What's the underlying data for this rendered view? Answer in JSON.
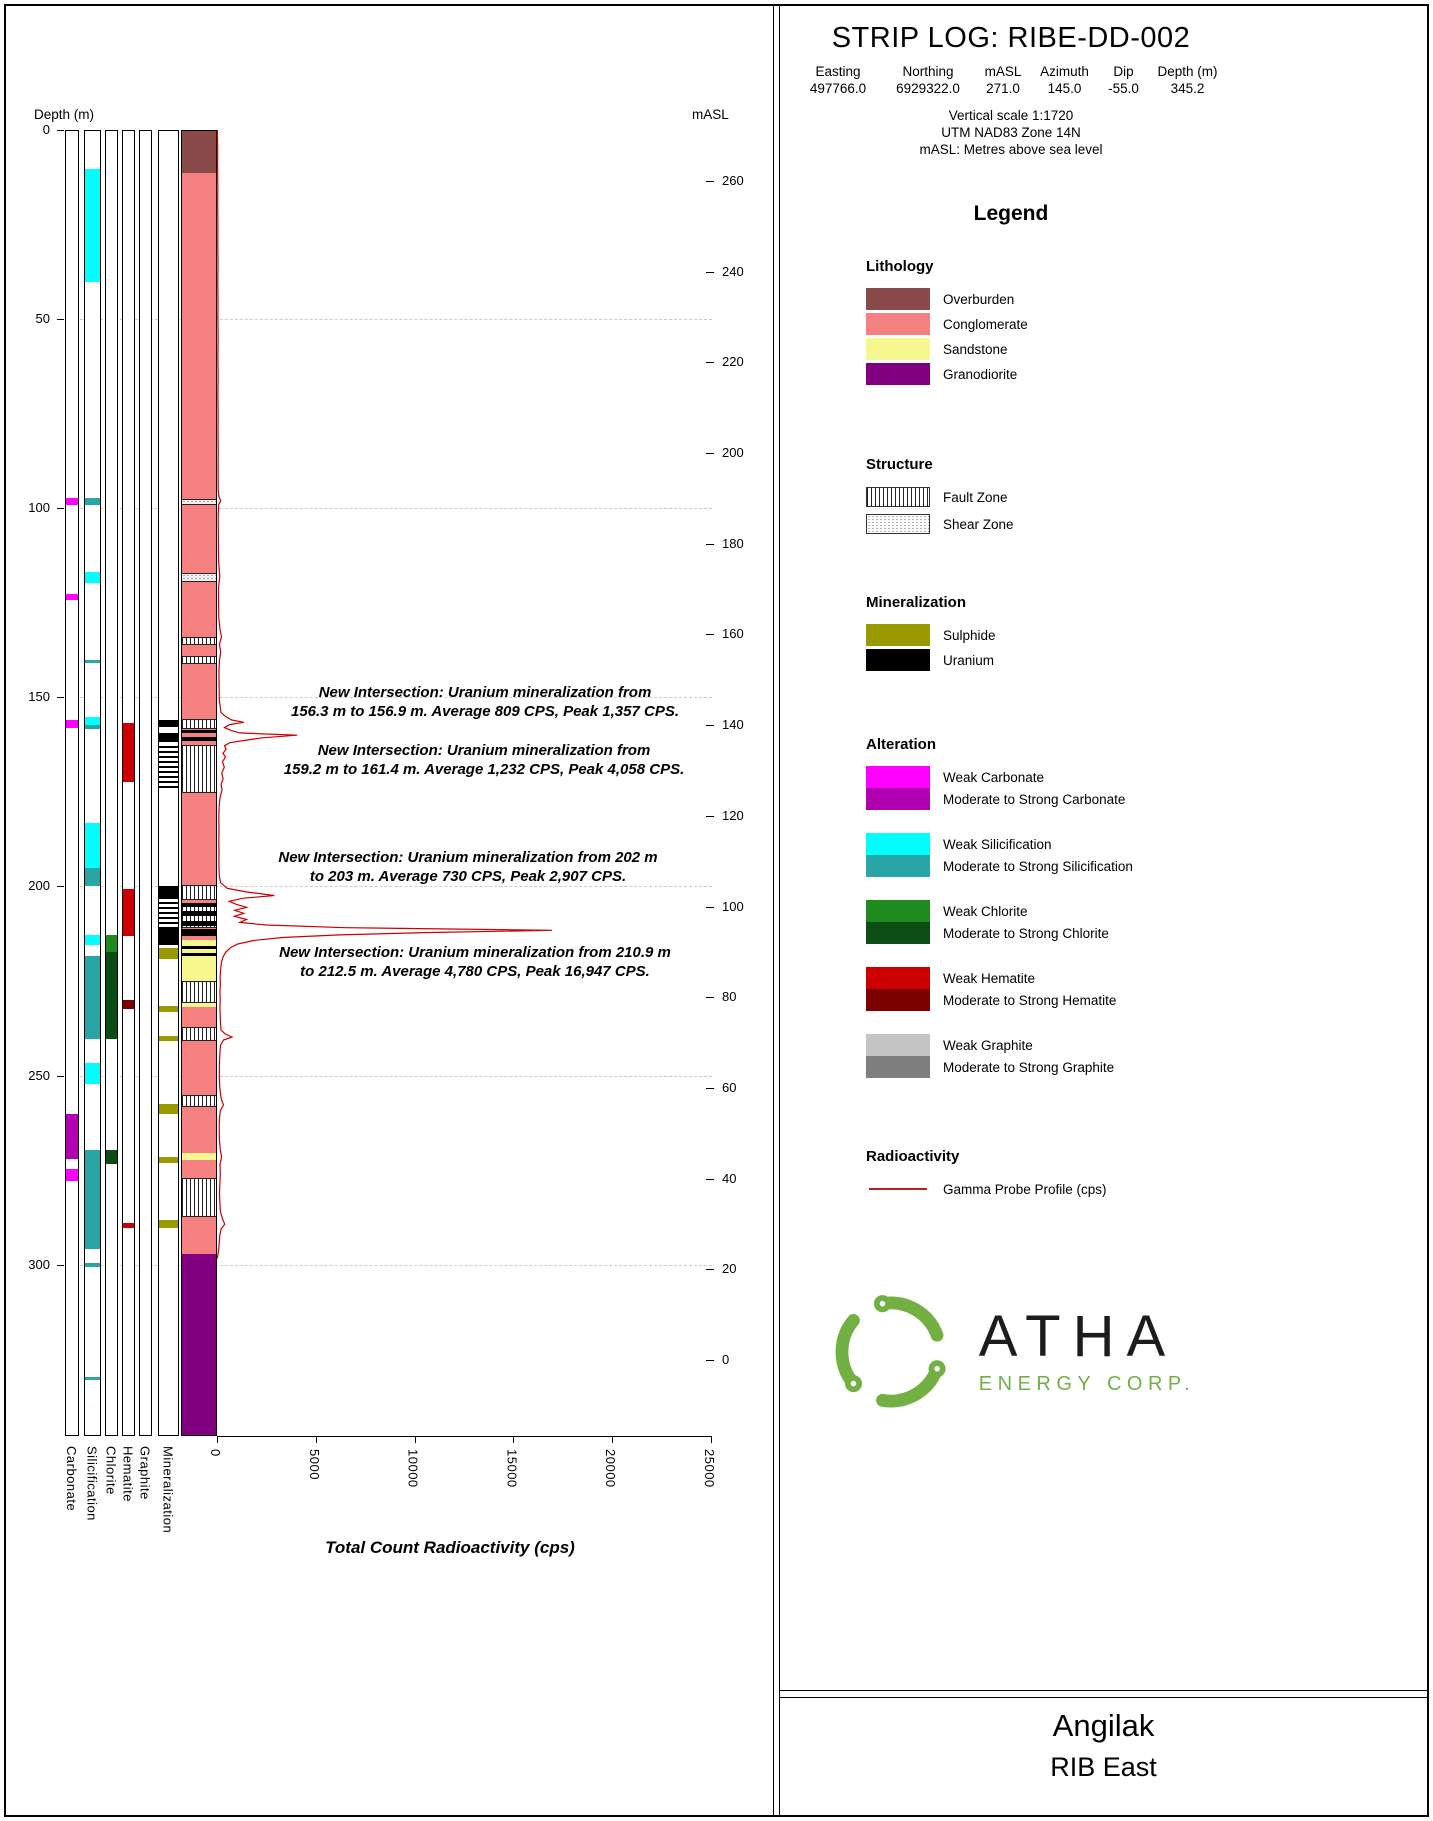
{
  "header": {
    "title": "STRIP LOG: RIBE-DD-002",
    "meta_headers": [
      "Easting",
      "Northing",
      "mASL",
      "Azimuth",
      "Dip",
      "Depth (m)"
    ],
    "meta_values": [
      "497766.0",
      "6929322.0",
      "271.0",
      "145.0",
      "-55.0",
      "345.2"
    ],
    "notes": [
      "Vertical scale 1:1720",
      "UTM NAD83 Zone 14N",
      "mASL: Metres above sea level"
    ]
  },
  "legend": {
    "title": "Legend",
    "sections": [
      {
        "heading": "Lithology",
        "type": "swatch",
        "items": [
          {
            "label": "Overburden",
            "color": "#8B4A4A"
          },
          {
            "label": "Conglomerate",
            "color": "#F58080"
          },
          {
            "label": "Sandstone",
            "color": "#F7F78F"
          },
          {
            "label": "Granodiorite",
            "color": "#800080"
          }
        ]
      },
      {
        "heading": "Structure",
        "type": "pattern",
        "items": [
          {
            "label": "Fault Zone",
            "pattern": "fault"
          },
          {
            "label": "Shear Zone",
            "pattern": "shear"
          }
        ]
      },
      {
        "heading": "Mineralization",
        "type": "swatch",
        "items": [
          {
            "label": "Sulphide",
            "color": "#999900"
          },
          {
            "label": "Uranium",
            "color": "#000000"
          }
        ]
      },
      {
        "heading": "Alteration",
        "type": "pairs",
        "items": [
          {
            "weak_label": "Weak Carbonate",
            "strong_label": "Moderate to Strong Carbonate",
            "weak_color": "#FF00FF",
            "strong_color": "#B000B0"
          },
          {
            "weak_label": "Weak Silicification",
            "strong_label": "Moderate to Strong Silicification",
            "weak_color": "#00FFFF",
            "strong_color": "#2AA5A5"
          },
          {
            "weak_label": "Weak Chlorite",
            "strong_label": "Moderate to Strong Chlorite",
            "weak_color": "#1F8B1F",
            "strong_color": "#0B4D14"
          },
          {
            "weak_label": "Weak Hematite",
            "strong_label": "Moderate to Strong Hematite",
            "weak_color": "#CC0000",
            "strong_color": "#7B0000"
          },
          {
            "weak_label": "Weak Graphite",
            "strong_label": "Moderate to Strong Graphite",
            "weak_color": "#C4C4C4",
            "strong_color": "#7F7F7F"
          }
        ]
      },
      {
        "heading": "Radioactivity",
        "type": "line",
        "items": [
          {
            "label": "Gamma Probe Profile (cps)",
            "color": "#B22222"
          }
        ]
      }
    ]
  },
  "logo": {
    "name": "ATHA",
    "subtitle": "ENERGY CORP."
  },
  "footer": {
    "project": "Angilak",
    "area": "RIB East"
  },
  "annotations": [
    {
      "line1": "New Intersection: Uranium mineralization from",
      "line2": "156.3 m to 156.9 m. Average 809 CPS, Peak 1,357 CPS."
    },
    {
      "line1": "New Intersection: Uranium mineralization from",
      "line2": "159.2 m to 161.4 m. Average 1,232 CPS, Peak 4,058 CPS."
    },
    {
      "line1": "New Intersection: Uranium mineralization from 202 m",
      "line2": "to 203 m. Average 730 CPS, Peak 2,907 CPS."
    },
    {
      "line1": "New Intersection: Uranium mineralization from 210.9 m",
      "line2": "to 212.5 m. Average 4,780 CPS, Peak 16,947 CPS."
    }
  ],
  "colors": {
    "overburden": "#8B4A4A",
    "conglomerate": "#F58080",
    "sandstone": "#F7F78F",
    "granodiorite": "#800080",
    "sulphide": "#999900",
    "uranium": "#000000",
    "carbonate_weak": "#FF00FF",
    "carbonate_strong": "#B000B0",
    "silicification_weak": "#00FFFF",
    "silicification_strong": "#2AA5A5",
    "chlorite_weak": "#1F8B1F",
    "chlorite_strong": "#0B4D14",
    "hematite_weak": "#CC0000",
    "hematite_strong": "#7B0000",
    "graphite_weak": "#C4C4C4",
    "graphite_strong": "#7F7F7F",
    "gamma_line": "#CC0000",
    "logo_green": "#72B043"
  },
  "chart_data": {
    "type": "strip-log",
    "depth_axis": {
      "label": "Depth (m)",
      "ticks": [
        0,
        50,
        100,
        150,
        200,
        250,
        300
      ],
      "max_depth": 345.2
    },
    "masl_axis": {
      "label": "mASL",
      "ticks": [
        260,
        240,
        220,
        200,
        180,
        160,
        140,
        120,
        100,
        80,
        60,
        40,
        20,
        0
      ],
      "collar_masl": 271.0
    },
    "cps_axis": {
      "label": "Total Count Radioactivity (cps)",
      "ticks": [
        0,
        5000,
        10000,
        15000,
        20000,
        25000
      ],
      "range": [
        0,
        25000
      ]
    },
    "track_order": [
      "Carbonate",
      "Silicification",
      "Chlorite",
      "Hematite",
      "Graphite",
      "Mineralization"
    ],
    "alteration_tracks": {
      "carbonate": [
        [
          97,
          99,
          "weak"
        ],
        [
          122.5,
          124,
          "weak"
        ],
        [
          155.8,
          157.8,
          "weak"
        ],
        [
          259.8,
          271.8,
          "strong"
        ],
        [
          274.5,
          277.5,
          "weak"
        ]
      ],
      "silicification": [
        [
          10,
          40,
          "weak"
        ],
        [
          97,
          99,
          "strong"
        ],
        [
          116.5,
          119.5,
          "weak"
        ],
        [
          139.8,
          140.6,
          "strong"
        ],
        [
          155,
          157,
          "weak"
        ],
        [
          157,
          158.2,
          "strong"
        ],
        [
          183,
          194.8,
          "weak"
        ],
        [
          194.8,
          199.5,
          "strong"
        ],
        [
          212.5,
          215.2,
          "weak"
        ],
        [
          218,
          240,
          "strong"
        ],
        [
          246.5,
          252,
          "weak"
        ],
        [
          269.3,
          295.5,
          "strong"
        ],
        [
          299.3,
          300.3,
          "strong"
        ],
        [
          329.3,
          330.3,
          "strong"
        ]
      ],
      "chlorite": [
        [
          212.5,
          217,
          "weak"
        ],
        [
          217,
          240,
          "strong"
        ],
        [
          269.3,
          273,
          "strong"
        ]
      ],
      "hematite": [
        [
          156.5,
          172,
          "weak"
        ],
        [
          200.5,
          212.8,
          "weak"
        ],
        [
          229.8,
          232.2,
          "strong"
        ],
        [
          288.8,
          290,
          "weak"
        ]
      ],
      "graphite": []
    },
    "mineralization_track": [
      [
        155.8,
        157.6,
        "uranium"
      ],
      [
        159.2,
        161.6,
        "uranium"
      ],
      [
        162.6,
        174.6,
        "uranium_bands"
      ],
      [
        199.6,
        203,
        "uranium"
      ],
      [
        203.8,
        210.5,
        "uranium_bands"
      ],
      [
        210.5,
        215.2,
        "uranium"
      ],
      [
        215.9,
        218.8,
        "sulphide"
      ],
      [
        231.4,
        232.8,
        "sulphide"
      ],
      [
        239.2,
        240.6,
        "sulphide"
      ],
      [
        257.3,
        259.8,
        "sulphide"
      ],
      [
        271.2,
        272.8,
        "sulphide"
      ],
      [
        287.8,
        290,
        "sulphide"
      ]
    ],
    "lithology_track": [
      [
        0,
        11,
        "overburden"
      ],
      [
        11,
        214,
        "conglomerate"
      ],
      [
        214,
        231.5,
        "sandstone"
      ],
      [
        231.5,
        270.3,
        "conglomerate"
      ],
      [
        270.3,
        272,
        "sandstone"
      ],
      [
        272,
        297,
        "conglomerate"
      ],
      [
        297,
        345.2,
        "granodiorite"
      ]
    ],
    "structure_zones": [
      [
        97.4,
        99,
        "shear"
      ],
      [
        116.8,
        119.2,
        "shear"
      ],
      [
        133.8,
        136,
        "fault"
      ],
      [
        138.8,
        141,
        "fault"
      ],
      [
        155.4,
        158,
        "fault"
      ],
      [
        162.4,
        175,
        "fault"
      ],
      [
        199.4,
        203.2,
        "fault"
      ],
      [
        204.5,
        210.6,
        "fault"
      ],
      [
        224.8,
        230.6,
        "fault"
      ],
      [
        236.8,
        240.6,
        "fault"
      ],
      [
        254.8,
        258,
        "fault"
      ],
      [
        276.8,
        287,
        "fault"
      ]
    ],
    "lithology_uranium_bands": [
      [
        158.3,
        159.2
      ],
      [
        160.3,
        161.2
      ],
      [
        204,
        205.2
      ],
      [
        206.3,
        207.6
      ],
      [
        208.8,
        210.1
      ],
      [
        210.9,
        212.8
      ],
      [
        215.4,
        216.2
      ],
      [
        217.2,
        218
      ]
    ],
    "gamma_profile": {
      "name": "Gamma Probe Profile (cps)",
      "units": "cps",
      "points": [
        [
          0,
          20
        ],
        [
          5,
          35
        ],
        [
          10,
          28
        ],
        [
          15,
          42
        ],
        [
          20,
          34
        ],
        [
          25,
          46
        ],
        [
          30,
          38
        ],
        [
          35,
          50
        ],
        [
          40,
          42
        ],
        [
          45,
          52
        ],
        [
          50,
          44
        ],
        [
          55,
          54
        ],
        [
          60,
          46
        ],
        [
          65,
          56
        ],
        [
          70,
          48
        ],
        [
          75,
          58
        ],
        [
          80,
          50
        ],
        [
          85,
          60
        ],
        [
          90,
          55
        ],
        [
          95,
          60
        ],
        [
          97,
          95
        ],
        [
          98,
          190
        ],
        [
          99,
          85
        ],
        [
          102,
          62
        ],
        [
          106,
          68
        ],
        [
          110,
          72
        ],
        [
          114,
          80
        ],
        [
          118,
          140
        ],
        [
          121,
          78
        ],
        [
          125,
          82
        ],
        [
          129,
          90
        ],
        [
          132,
          150
        ],
        [
          134,
          230
        ],
        [
          136,
          120
        ],
        [
          138,
          185
        ],
        [
          140,
          130
        ],
        [
          143,
          95
        ],
        [
          147,
          105
        ],
        [
          151,
          120
        ],
        [
          154,
          200
        ],
        [
          155,
          420
        ],
        [
          156,
          750
        ],
        [
          156.6,
          1357
        ],
        [
          157.2,
          640
        ],
        [
          158,
          380
        ],
        [
          158.8,
          720
        ],
        [
          159.4,
          1150
        ],
        [
          160,
          4058
        ],
        [
          160.7,
          2300
        ],
        [
          161.4,
          1350
        ],
        [
          162,
          650
        ],
        [
          162.8,
          380
        ],
        [
          163.8,
          460
        ],
        [
          164.8,
          300
        ],
        [
          165.8,
          430
        ],
        [
          167,
          280
        ],
        [
          168.5,
          370
        ],
        [
          170,
          240
        ],
        [
          171.5,
          310
        ],
        [
          173,
          210
        ],
        [
          174.5,
          260
        ],
        [
          176.5,
          150
        ],
        [
          179,
          105
        ],
        [
          182,
          92
        ],
        [
          185,
          100
        ],
        [
          188,
          92
        ],
        [
          191,
          102
        ],
        [
          194,
          94
        ],
        [
          197,
          110
        ],
        [
          199,
          180
        ],
        [
          200.5,
          520
        ],
        [
          201.5,
          1550
        ],
        [
          202.4,
          2907
        ],
        [
          203.1,
          1350
        ],
        [
          203.9,
          620
        ],
        [
          204.7,
          950
        ],
        [
          205.5,
          1500
        ],
        [
          206.3,
          900
        ],
        [
          207.1,
          1350
        ],
        [
          207.9,
          880
        ],
        [
          208.7,
          1500
        ],
        [
          209.5,
          1150
        ],
        [
          210.2,
          2500
        ],
        [
          210.9,
          6500
        ],
        [
          211.6,
          16947
        ],
        [
          212.2,
          10500
        ],
        [
          212.8,
          6200
        ],
        [
          213.5,
          3300
        ],
        [
          214.3,
          1850
        ],
        [
          215.2,
          1050
        ],
        [
          216.2,
          680
        ],
        [
          217.4,
          440
        ],
        [
          218.6,
          310
        ],
        [
          220,
          230
        ],
        [
          222,
          180
        ],
        [
          224,
          155
        ],
        [
          226,
          170
        ],
        [
          228,
          145
        ],
        [
          230,
          165
        ],
        [
          232,
          145
        ],
        [
          234,
          160
        ],
        [
          236,
          175
        ],
        [
          238,
          210
        ],
        [
          239,
          420
        ],
        [
          239.8,
          760
        ],
        [
          240.6,
          330
        ],
        [
          242,
          175
        ],
        [
          244,
          145
        ],
        [
          247,
          120
        ],
        [
          250,
          115
        ],
        [
          253,
          135
        ],
        [
          256,
          210
        ],
        [
          257.8,
          330
        ],
        [
          259.2,
          170
        ],
        [
          261.5,
          120
        ],
        [
          264,
          112
        ],
        [
          267,
          122
        ],
        [
          269.5,
          160
        ],
        [
          271.5,
          235
        ],
        [
          273.5,
          150
        ],
        [
          276,
          165
        ],
        [
          278.5,
          145
        ],
        [
          281,
          128
        ],
        [
          283.5,
          140
        ],
        [
          286,
          170
        ],
        [
          288,
          290
        ],
        [
          289.3,
          390
        ],
        [
          290.6,
          210
        ],
        [
          292.2,
          140
        ],
        [
          294,
          115
        ],
        [
          296,
          85
        ],
        [
          297.4,
          45
        ],
        [
          298.4,
          15
        ]
      ]
    },
    "intersections": [
      {
        "from_m": 156.3,
        "to_m": 156.9,
        "avg_cps": 809,
        "peak_cps": 1357
      },
      {
        "from_m": 159.2,
        "to_m": 161.4,
        "avg_cps": 1232,
        "peak_cps": 4058
      },
      {
        "from_m": 202,
        "to_m": 203,
        "avg_cps": 730,
        "peak_cps": 2907
      },
      {
        "from_m": 210.9,
        "to_m": 212.5,
        "avg_cps": 4780,
        "peak_cps": 16947
      }
    ]
  }
}
